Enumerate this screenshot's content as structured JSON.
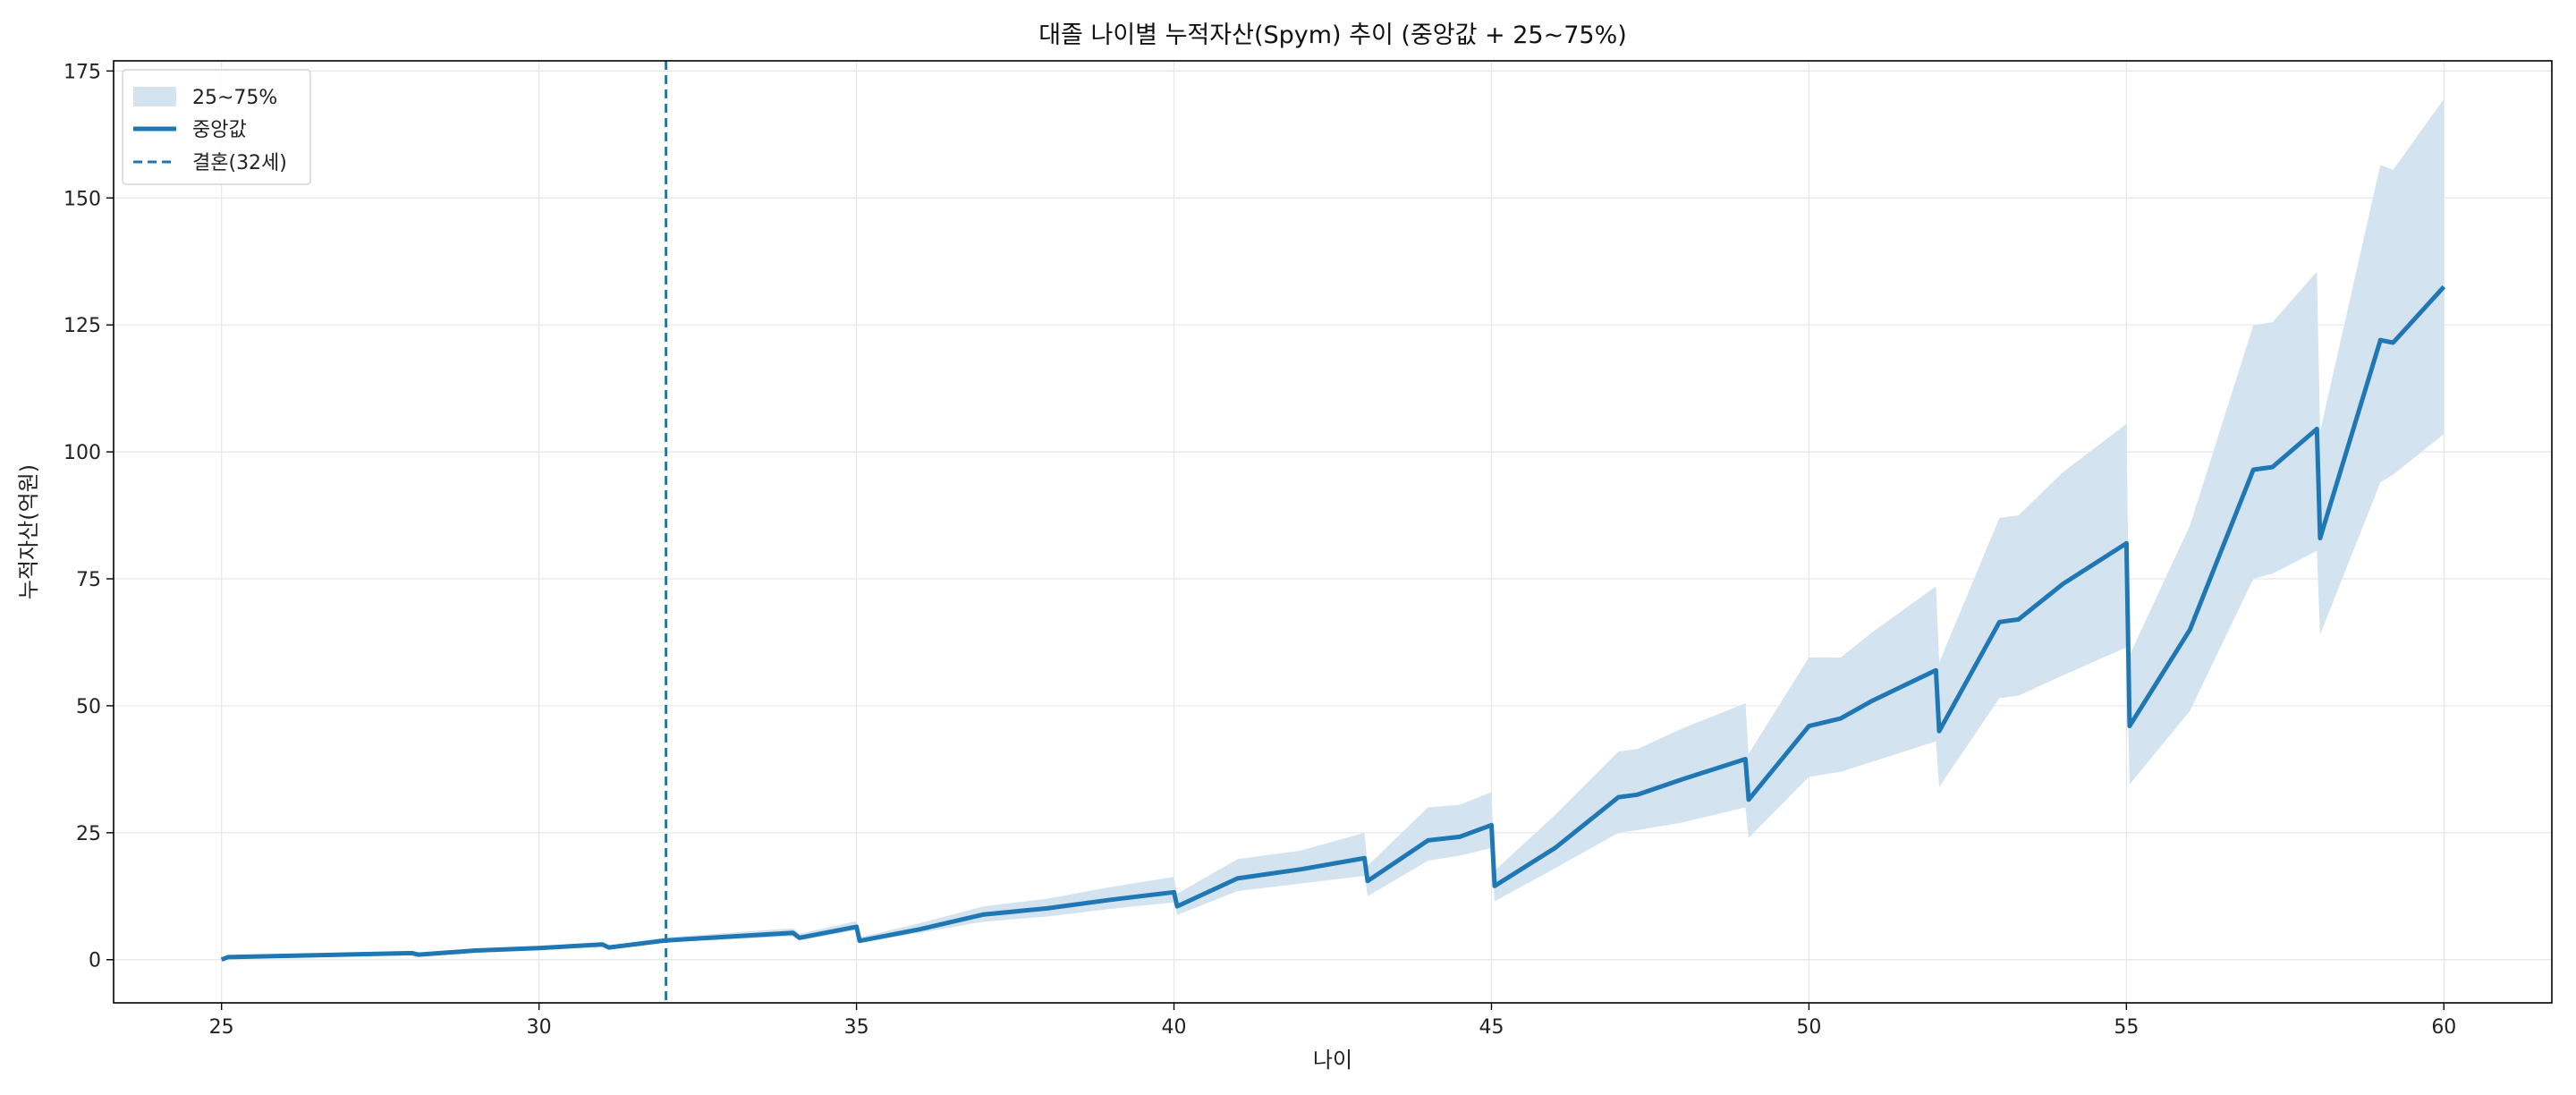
{
  "chart_data": {
    "type": "line",
    "title": "대졸 나이별 누적자산(Spym) 추이 (중앙값 + 25~75%)",
    "xlabel": "나이",
    "ylabel": "누적자산(억원)",
    "xlim": [
      23.3,
      61.7
    ],
    "ylim": [
      -8.5,
      177
    ],
    "xticks": [
      25,
      30,
      35,
      40,
      45,
      50,
      55,
      60
    ],
    "yticks": [
      0,
      25,
      50,
      75,
      100,
      125,
      150,
      175
    ],
    "grid": true,
    "legend_position": "top-left",
    "colors": {
      "median": "#1f77b4",
      "band": "#d3e3f0",
      "marriage": "#1f77b4",
      "grid": "#e6e6e6"
    },
    "marriage_line": {
      "x": 32,
      "label": "결혼(32세)"
    },
    "series": [
      {
        "name": "중앙값",
        "x": [
          25,
          25.1,
          28,
          28.1,
          29,
          30,
          31,
          31.1,
          32,
          34,
          34.1,
          35,
          35.05,
          36,
          37,
          38,
          39,
          40,
          40.05,
          41,
          42,
          43,
          43.05,
          44,
          44.5,
          45,
          45.05,
          46,
          47,
          47.3,
          48,
          49,
          49.05,
          50,
          50.5,
          51,
          52,
          52.05,
          53,
          53.3,
          54,
          55,
          55.05,
          56,
          57,
          57.3,
          58,
          58.05,
          59,
          59.2,
          60
        ],
        "values": [
          0,
          0.5,
          1.3,
          1.0,
          1.8,
          2.3,
          3.0,
          2.4,
          3.8,
          5.3,
          4.3,
          6.5,
          3.7,
          6.0,
          8.9,
          10.1,
          11.8,
          13.3,
          10.5,
          16.0,
          17.8,
          20.0,
          15.5,
          23.5,
          24.2,
          26.5,
          14.5,
          22.0,
          32.0,
          32.5,
          35.5,
          39.5,
          31.5,
          46.0,
          47.5,
          51.0,
          57.0,
          45.0,
          66.5,
          67.0,
          74.0,
          82.0,
          46.0,
          65.0,
          96.5,
          97.0,
          104.5,
          83.0,
          122.0,
          121.5,
          132.5
        ]
      },
      {
        "name": "25~75%",
        "x": [
          25,
          25.1,
          28,
          28.1,
          29,
          30,
          31,
          31.1,
          32,
          34,
          34.1,
          35,
          35.05,
          36,
          37,
          38,
          39,
          40,
          40.05,
          41,
          42,
          43,
          43.05,
          44,
          44.5,
          45,
          45.05,
          46,
          47,
          47.3,
          48,
          49,
          49.05,
          50,
          50.5,
          51,
          52,
          52.05,
          53,
          53.3,
          54,
          55,
          55.05,
          56,
          57,
          57.3,
          58,
          58.05,
          59,
          59.2,
          60
        ],
        "lower": [
          0,
          0.4,
          1.1,
          0.9,
          1.6,
          2.0,
          2.6,
          2.1,
          3.4,
          4.6,
          3.8,
          5.8,
          3.3,
          5.3,
          7.5,
          8.5,
          10.0,
          11.3,
          8.8,
          13.5,
          15.0,
          16.5,
          12.5,
          19.5,
          20.5,
          22.0,
          11.5,
          18.0,
          25.0,
          25.5,
          27.0,
          30.0,
          24.0,
          36.0,
          37.0,
          39.0,
          43.0,
          34.0,
          51.5,
          52.0,
          56.0,
          61.5,
          34.5,
          49.0,
          75.0,
          76.0,
          80.5,
          64.0,
          94.0,
          95.5,
          103.5
        ],
        "upper": [
          0,
          0.6,
          1.6,
          1.2,
          2.1,
          2.7,
          3.5,
          2.8,
          4.4,
          6.2,
          5.1,
          7.6,
          4.4,
          7.2,
          10.5,
          12.0,
          14.3,
          16.3,
          13.0,
          19.8,
          21.5,
          25.0,
          18.5,
          30.0,
          30.5,
          33.0,
          17.5,
          28.5,
          41.0,
          41.5,
          45.5,
          50.5,
          40.5,
          59.5,
          59.5,
          64.5,
          73.5,
          58.5,
          87.0,
          87.5,
          96.0,
          105.5,
          60.0,
          85.5,
          125.0,
          125.5,
          135.5,
          104.0,
          156.5,
          155.5,
          169.5
        ]
      }
    ],
    "legend": [
      {
        "key": "band",
        "label": "25~75%"
      },
      {
        "key": "median",
        "label": "중앙값"
      },
      {
        "key": "marriage",
        "label": "결혼(32세)"
      }
    ]
  }
}
